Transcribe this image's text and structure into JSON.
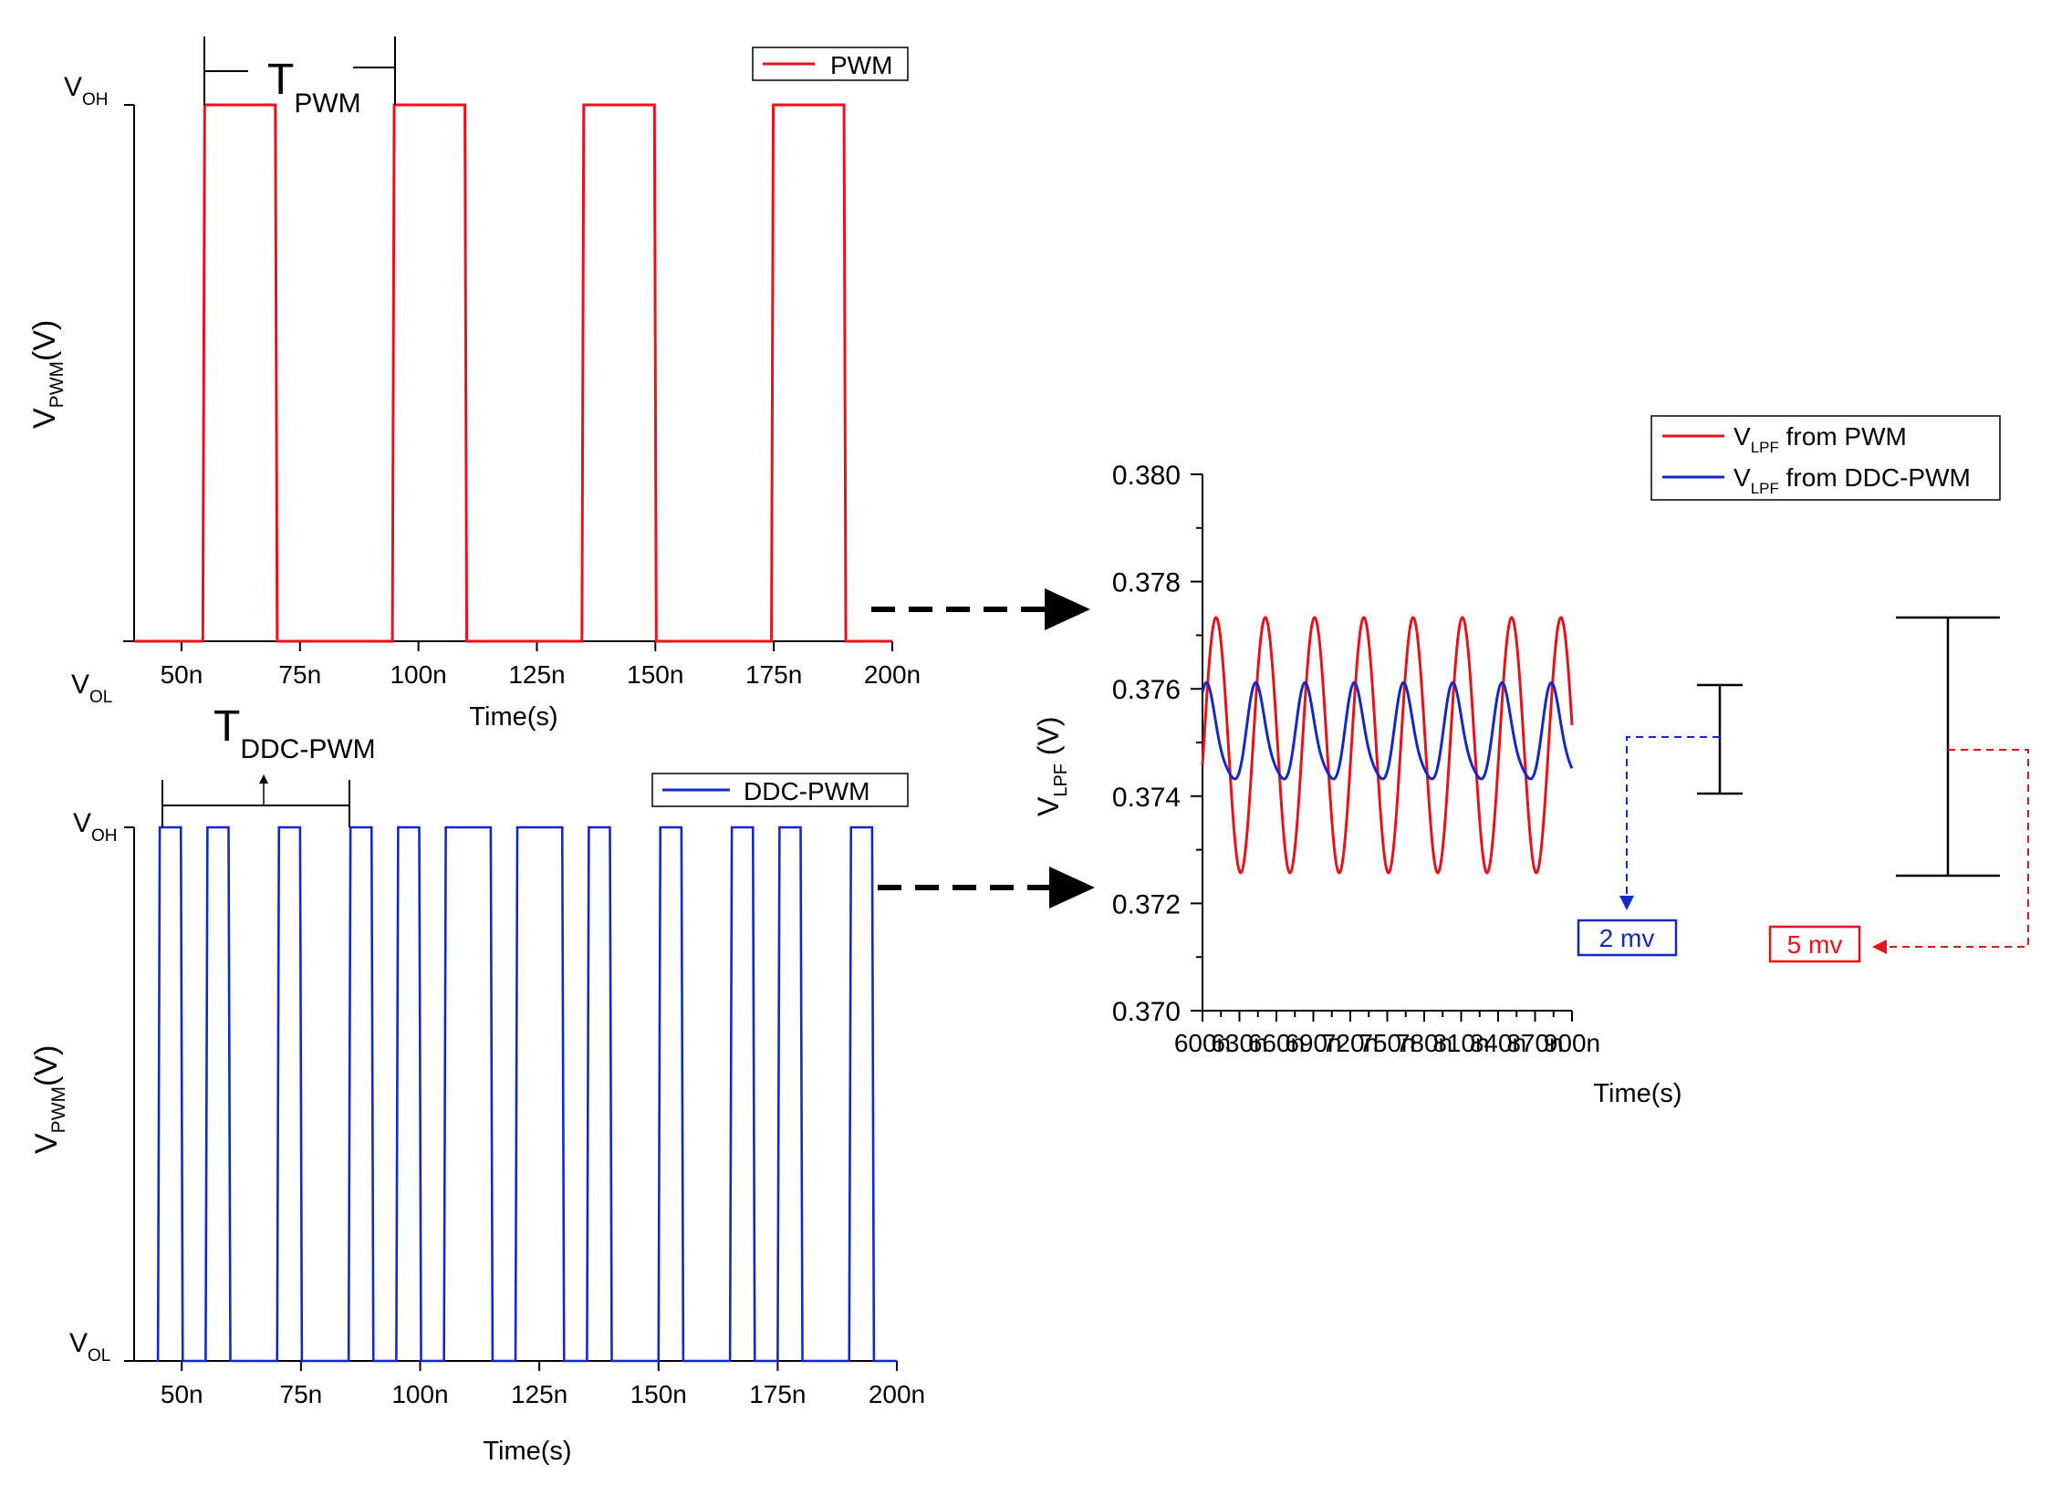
{
  "chart_data": [
    {
      "type": "line",
      "title": "",
      "xlabel": "Time(s)",
      "ylabel": "V",
      "ylabel_sub": "PWM",
      "ylabel_unit": "(V)",
      "xlim": [
        40,
        200
      ],
      "xticks": [
        "50n",
        "75n",
        "100n",
        "125n",
        "150n",
        "175n",
        "200n"
      ],
      "xtick_values": [
        50,
        75,
        100,
        125,
        150,
        175,
        200
      ],
      "yticks": [
        {
          "main": "V",
          "sub": "OH",
          "level": "high"
        },
        {
          "main": "V",
          "sub": "OL",
          "level": "low"
        }
      ],
      "legend": {
        "position": "top-right"
      },
      "series": [
        {
          "name": "PWM",
          "color": "#e8121b",
          "pulses": [
            [
              54.5,
              70
            ],
            [
              94.5,
              110
            ],
            [
              134.5,
              150
            ],
            [
              174.5,
              190
            ]
          ]
        }
      ],
      "annotation": {
        "main": "T",
        "sub": "PWM",
        "span": [
          54.5,
          94.5
        ]
      }
    },
    {
      "type": "line",
      "title": "",
      "xlabel": "Time(s)",
      "ylabel": "V",
      "ylabel_sub": "PWM",
      "ylabel_unit": "(V)",
      "xlim": [
        40,
        200
      ],
      "xticks": [
        "50n",
        "75n",
        "100n",
        "125n",
        "150n",
        "175n",
        "200n"
      ],
      "xtick_values": [
        50,
        75,
        100,
        125,
        150,
        175,
        200
      ],
      "yticks": [
        {
          "main": "V",
          "sub": "OH",
          "level": "high"
        },
        {
          "main": "V",
          "sub": "OL",
          "level": "low"
        }
      ],
      "legend": {
        "position": "top-right"
      },
      "series": [
        {
          "name": "DDC-PWM",
          "color": "#1428c8",
          "pulses": [
            [
              45,
              50
            ],
            [
              55,
              60
            ],
            [
              70,
              75
            ],
            [
              85,
              90
            ],
            [
              95,
              100
            ],
            [
              105,
              115
            ],
            [
              120,
              130
            ],
            [
              135,
              140
            ],
            [
              150,
              155
            ],
            [
              165,
              170
            ],
            [
              175,
              180
            ],
            [
              190,
              195
            ]
          ]
        }
      ],
      "annotation": {
        "main": "T",
        "sub": "DDC-PWM",
        "span": [
          45,
          85
        ]
      }
    },
    {
      "type": "line",
      "title": "",
      "xlabel": "Time(s)",
      "ylabel": "V",
      "ylabel_sub": "LPF",
      "ylabel_unit": " (V)",
      "xlim": [
        600,
        900
      ],
      "ylim": [
        0.37,
        0.38
      ],
      "xticks": [
        "600n",
        "630n",
        "660n",
        "690n",
        "720n",
        "750n",
        "780n",
        "810n",
        "840n",
        "870n",
        "900n"
      ],
      "xtick_values": [
        600,
        630,
        660,
        690,
        720,
        750,
        780,
        810,
        840,
        870,
        900
      ],
      "yticks": [
        "0.370",
        "0.372",
        "0.374",
        "0.376",
        "0.378",
        "0.380"
      ],
      "ytick_values": [
        0.37,
        0.372,
        0.374,
        0.376,
        0.378,
        0.38
      ],
      "legend": {
        "position": "top-right"
      },
      "series": [
        {
          "name_main": "V",
          "name_sub": "LPF",
          "name_rest": " from PWM",
          "color": "#e8121b",
          "period": 40,
          "peak_x": 611,
          "mean": 0.37495,
          "amplitude": 0.00238,
          "x_range": [
            600,
            900
          ]
        },
        {
          "name_main": "V",
          "name_sub": "LPF",
          "name_rest": " from DDC-PWM",
          "color": "#1428c8",
          "period": 40,
          "peak_x": 604,
          "mean": 0.3751,
          "amplitude": 0.00098,
          "x_range": [
            600,
            900
          ]
        }
      ],
      "annotations": [
        {
          "text": "2 mv",
          "color": "#1428c8"
        },
        {
          "text": "5 mv",
          "color": "#e8121b"
        }
      ]
    }
  ]
}
